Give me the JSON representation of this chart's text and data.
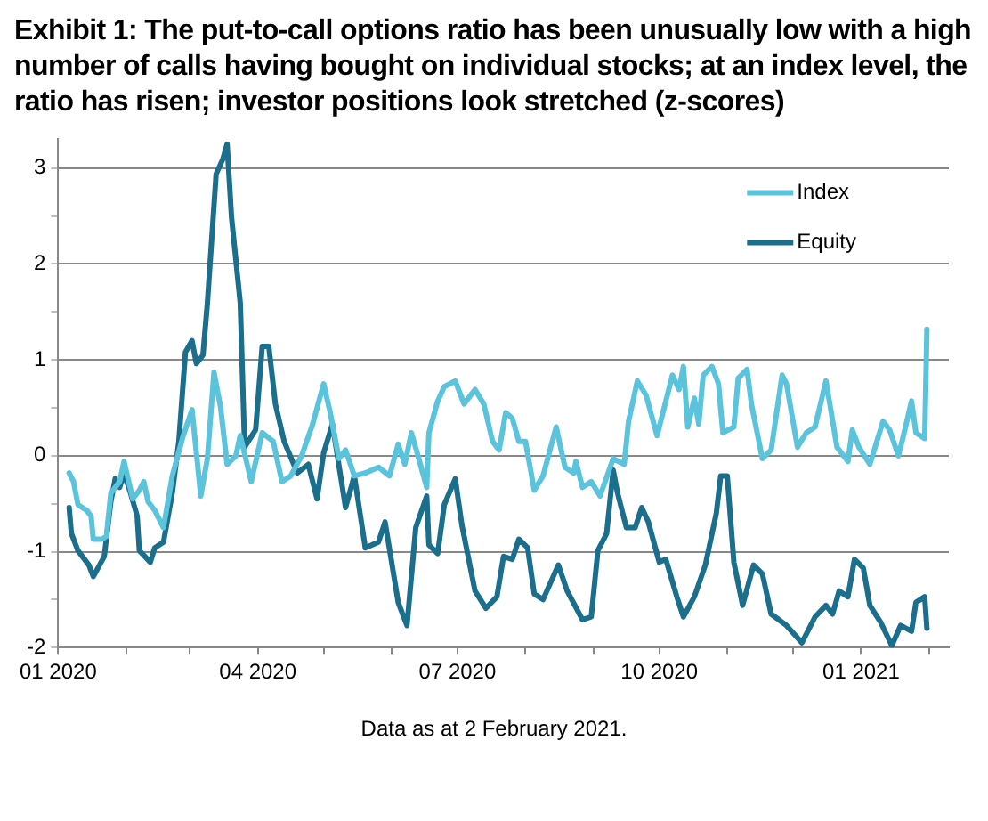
{
  "chart_data": {
    "type": "line",
    "title": "Exhibit 1: The put-to-call options ratio has been unusually low with a high number of calls having bought on individual stocks; at an index level, the ratio has risen; investor positions look stretched (z-scores)",
    "annotations": [
      "Data as at 2 February 2021."
    ],
    "xlim": [
      "2020-01-01",
      "2021-02-10"
    ],
    "xticks": [
      {
        "value": "2020-01-01",
        "label": "01 2020"
      },
      {
        "value": "2020-02-01",
        "label": null
      },
      {
        "value": "2020-03-01",
        "label": null
      },
      {
        "value": "2020-04-01",
        "label": "04 2020"
      },
      {
        "value": "2020-05-01",
        "label": null
      },
      {
        "value": "2020-06-01",
        "label": null
      },
      {
        "value": "2020-07-01",
        "label": "07 2020"
      },
      {
        "value": "2020-08-01",
        "label": null
      },
      {
        "value": "2020-09-01",
        "label": null
      },
      {
        "value": "2020-10-01",
        "label": "10 2020"
      },
      {
        "value": "2020-11-01",
        "label": null
      },
      {
        "value": "2020-12-01",
        "label": null
      },
      {
        "value": "2021-01-01",
        "label": "01 2021"
      },
      {
        "value": "2021-02-01",
        "label": null
      }
    ],
    "ylim": [
      -2,
      3.3
    ],
    "yticks": [
      -2,
      {
        "value": -1.5,
        "label": null
      },
      -1,
      {
        "value": -0.5,
        "label": null
      },
      0,
      {
        "value": 0.5,
        "label": null
      },
      1,
      {
        "value": 1.5,
        "label": null
      },
      2,
      {
        "value": 2.5,
        "label": null
      },
      3
    ],
    "grid": "y",
    "legend": "top right",
    "marker": "none",
    "line_style": "solid",
    "series": [
      {
        "name": "Index",
        "color": "#5bc3dc",
        "x": [
          "2020-01-06",
          "2020-01-08",
          "2020-01-10",
          "2020-01-14",
          "2020-01-16",
          "2020-01-17",
          "2020-01-21",
          "2020-01-23",
          "2020-01-25",
          "2020-01-29",
          "2020-01-31",
          "2020-02-04",
          "2020-02-07",
          "2020-02-09",
          "2020-02-11",
          "2020-02-14",
          "2020-02-18",
          "2020-02-22",
          "2020-02-27",
          "2020-03-02",
          "2020-03-06",
          "2020-03-09",
          "2020-03-12",
          "2020-03-15",
          "2020-03-18",
          "2020-03-22",
          "2020-03-24",
          "2020-03-29",
          "2020-04-03",
          "2020-04-08",
          "2020-04-12",
          "2020-04-16",
          "2020-04-21",
          "2020-04-26",
          "2020-05-01",
          "2020-05-04",
          "2020-05-08",
          "2020-05-11",
          "2020-05-15",
          "2020-05-20",
          "2020-05-26",
          "2020-05-31",
          "2020-06-04",
          "2020-06-07",
          "2020-06-10",
          "2020-06-13",
          "2020-06-17",
          "2020-06-18",
          "2020-06-22",
          "2020-06-25",
          "2020-06-30",
          "2020-07-04",
          "2020-07-09",
          "2020-07-13",
          "2020-07-17",
          "2020-07-20",
          "2020-07-23",
          "2020-07-26",
          "2020-07-29",
          "2020-08-01",
          "2020-08-05",
          "2020-08-09",
          "2020-08-15",
          "2020-08-19",
          "2020-08-23",
          "2020-08-24",
          "2020-08-27",
          "2020-08-31",
          "2020-09-04",
          "2020-09-10",
          "2020-09-15",
          "2020-09-17",
          "2020-09-21",
          "2020-09-25",
          "2020-09-30",
          "2020-10-07",
          "2020-10-10",
          "2020-10-12",
          "2020-10-14",
          "2020-10-17",
          "2020-10-19",
          "2020-10-21",
          "2020-10-25",
          "2020-10-28",
          "2020-10-30",
          "2020-11-04",
          "2020-11-06",
          "2020-11-10",
          "2020-11-12",
          "2020-11-17",
          "2020-11-21",
          "2020-11-26",
          "2020-11-28",
          "2020-12-03",
          "2020-12-07",
          "2020-12-11",
          "2020-12-16",
          "2020-12-21",
          "2020-12-26",
          "2020-12-28",
          "2020-12-31",
          "2021-01-05",
          "2021-01-11",
          "2021-01-14",
          "2021-01-18",
          "2021-01-20",
          "2021-01-24",
          "2021-01-26",
          "2021-01-30",
          "2021-01-31"
        ],
        "values": [
          -0.18,
          -0.27,
          -0.51,
          -0.57,
          -0.63,
          -0.87,
          -0.87,
          -0.84,
          -0.39,
          -0.27,
          -0.06,
          -0.45,
          -0.36,
          -0.27,
          -0.48,
          -0.57,
          -0.75,
          -0.21,
          0.21,
          0.48,
          -0.42,
          -0.03,
          0.87,
          0.51,
          -0.09,
          0.0,
          0.21,
          -0.27,
          0.24,
          0.15,
          -0.27,
          -0.21,
          0.0,
          0.33,
          0.75,
          0.45,
          -0.03,
          0.06,
          -0.21,
          -0.18,
          -0.12,
          -0.21,
          0.12,
          -0.09,
          0.24,
          0.0,
          -0.33,
          0.24,
          0.57,
          0.72,
          0.78,
          0.54,
          0.69,
          0.54,
          0.15,
          0.06,
          0.45,
          0.39,
          0.15,
          0.15,
          -0.36,
          -0.21,
          0.3,
          -0.12,
          -0.18,
          -0.06,
          -0.33,
          -0.27,
          -0.42,
          -0.03,
          -0.09,
          0.36,
          0.78,
          0.63,
          0.21,
          0.84,
          0.69,
          0.93,
          0.3,
          0.6,
          0.33,
          0.84,
          0.93,
          0.75,
          0.24,
          0.3,
          0.81,
          0.9,
          0.54,
          -0.03,
          0.06,
          0.84,
          0.75,
          0.09,
          0.24,
          0.3,
          0.78,
          0.09,
          -0.06,
          0.27,
          0.09,
          -0.09,
          0.36,
          0.27,
          0.0,
          0.18,
          0.57,
          0.24,
          0.18,
          1.32
        ]
      },
      {
        "name": "Equity",
        "color": "#1b6e8c",
        "x": [
          "2020-01-06",
          "2020-01-07",
          "2020-01-10",
          "2020-01-14",
          "2020-01-15",
          "2020-01-17",
          "2020-01-22",
          "2020-01-25",
          "2020-01-27",
          "2020-01-29",
          "2020-01-31",
          "2020-02-03",
          "2020-02-06",
          "2020-02-07",
          "2020-02-12",
          "2020-02-14",
          "2020-02-18",
          "2020-02-22",
          "2020-02-25",
          "2020-02-28",
          "2020-03-02",
          "2020-03-04",
          "2020-03-07",
          "2020-03-09",
          "2020-03-13",
          "2020-03-16",
          "2020-03-18",
          "2020-03-20",
          "2020-03-24",
          "2020-03-26",
          "2020-03-31",
          "2020-04-03",
          "2020-04-06",
          "2020-04-09",
          "2020-04-13",
          "2020-04-19",
          "2020-04-24",
          "2020-04-28",
          "2020-05-01",
          "2020-05-05",
          "2020-05-11",
          "2020-05-15",
          "2020-05-20",
          "2020-05-26",
          "2020-05-29",
          "2020-06-04",
          "2020-06-08",
          "2020-06-12",
          "2020-06-17",
          "2020-06-18",
          "2020-06-22",
          "2020-06-25",
          "2020-06-30",
          "2020-07-03",
          "2020-07-09",
          "2020-07-14",
          "2020-07-19",
          "2020-07-22",
          "2020-07-26",
          "2020-07-29",
          "2020-08-02",
          "2020-08-05",
          "2020-08-09",
          "2020-08-16",
          "2020-08-20",
          "2020-08-27",
          "2020-08-31",
          "2020-09-03",
          "2020-09-07",
          "2020-09-10",
          "2020-09-12",
          "2020-09-16",
          "2020-09-20",
          "2020-09-23",
          "2020-09-26",
          "2020-10-01",
          "2020-10-04",
          "2020-10-09",
          "2020-10-12",
          "2020-10-17",
          "2020-10-22",
          "2020-10-27",
          "2020-10-29",
          "2020-11-01",
          "2020-11-04",
          "2020-11-08",
          "2020-11-13",
          "2020-11-17",
          "2020-11-21",
          "2020-11-28",
          "2020-12-05",
          "2020-12-11",
          "2020-12-16",
          "2020-12-19",
          "2020-12-22",
          "2020-12-26",
          "2020-12-29",
          "2021-01-02",
          "2021-01-05",
          "2021-01-10",
          "2021-01-15",
          "2021-01-19",
          "2021-01-24",
          "2021-01-26",
          "2021-01-30",
          "2021-01-31"
        ],
        "values": [
          -0.54,
          -0.81,
          -0.99,
          -1.11,
          -1.14,
          -1.26,
          -1.05,
          -0.48,
          -0.24,
          -0.33,
          -0.18,
          -0.39,
          -0.63,
          -0.99,
          -1.11,
          -0.96,
          -0.9,
          -0.39,
          0.15,
          1.08,
          1.2,
          0.96,
          1.05,
          1.59,
          2.94,
          3.09,
          3.25,
          2.49,
          1.59,
          0.09,
          0.27,
          1.14,
          1.14,
          0.54,
          0.15,
          -0.18,
          -0.09,
          -0.45,
          0.03,
          0.33,
          -0.54,
          -0.21,
          -0.96,
          -0.9,
          -0.69,
          -1.53,
          -1.77,
          -0.75,
          -0.42,
          -0.93,
          -1.02,
          -0.51,
          -0.24,
          -0.72,
          -1.41,
          -1.59,
          -1.47,
          -1.05,
          -1.08,
          -0.87,
          -0.96,
          -1.44,
          -1.5,
          -1.14,
          -1.41,
          -1.71,
          -1.68,
          -0.99,
          -0.81,
          -0.15,
          -0.39,
          -0.75,
          -0.75,
          -0.54,
          -0.69,
          -1.11,
          -1.08,
          -1.47,
          -1.68,
          -1.47,
          -1.14,
          -0.6,
          -0.21,
          -0.21,
          -1.11,
          -1.56,
          -1.14,
          -1.23,
          -1.65,
          -1.77,
          -1.95,
          -1.68,
          -1.56,
          -1.65,
          -1.41,
          -1.47,
          -1.08,
          -1.17,
          -1.56,
          -1.74,
          -1.98,
          -1.77,
          -1.83,
          -1.53,
          -1.47,
          -1.8
        ]
      }
    ]
  }
}
